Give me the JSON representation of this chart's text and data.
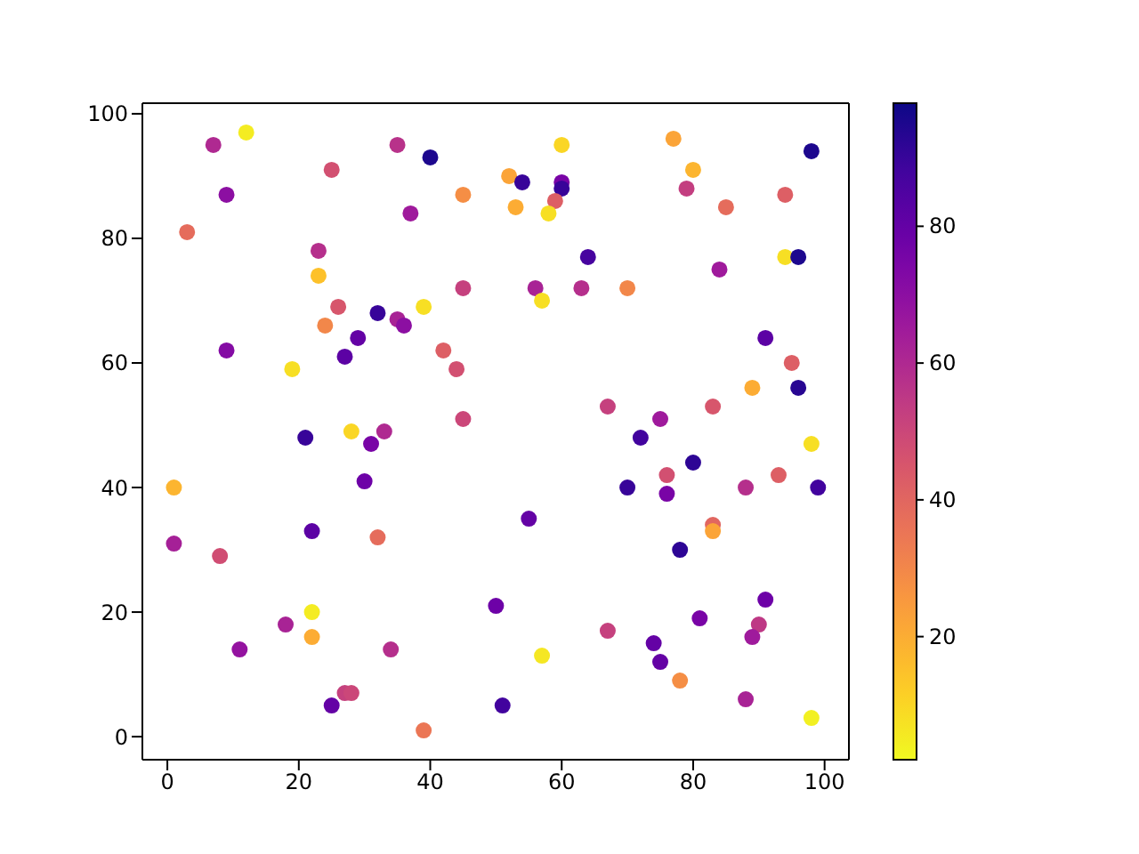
{
  "chart_data": {
    "type": "scatter",
    "x": [
      7,
      12,
      9,
      3,
      25,
      35,
      40,
      45,
      37,
      23,
      23,
      45,
      26,
      32,
      39,
      35,
      36,
      24,
      29,
      27,
      9,
      19,
      42,
      44,
      45,
      60,
      77,
      98,
      80,
      52,
      54,
      60,
      60,
      79,
      53,
      59,
      58,
      85,
      94,
      64,
      84,
      94,
      96,
      56,
      57,
      63,
      70,
      91,
      95,
      89,
      96,
      67,
      75,
      83,
      21,
      28,
      33,
      31,
      1,
      30,
      1,
      8,
      22,
      32,
      22,
      22,
      18,
      11,
      34,
      27,
      28,
      25,
      39,
      50,
      72,
      98,
      80,
      76,
      93,
      70,
      76,
      88,
      99,
      55,
      83,
      83,
      78,
      81,
      91,
      90,
      89,
      67,
      74,
      75,
      57,
      78,
      88,
      98,
      51
    ],
    "values": [
      95,
      97,
      87,
      81,
      91,
      95,
      93,
      87,
      84,
      78,
      74,
      72,
      69,
      68,
      69,
      67,
      66,
      66,
      64,
      61,
      62,
      59,
      62,
      59,
      51,
      95,
      96,
      94,
      91,
      90,
      89,
      89,
      88,
      88,
      85,
      86,
      84,
      85,
      87,
      77,
      75,
      77,
      77,
      72,
      70,
      72,
      72,
      64,
      60,
      56,
      56,
      53,
      51,
      53,
      48,
      49,
      49,
      47,
      40,
      41,
      31,
      29,
      33,
      32,
      20,
      16,
      18,
      14,
      14,
      7,
      7,
      5,
      1,
      21,
      48,
      47,
      44,
      42,
      42,
      40,
      39,
      40,
      40,
      35,
      34,
      33,
      30,
      19,
      22,
      18,
      16,
      17,
      15,
      12,
      13,
      9,
      6,
      3,
      5
    ],
    "cvalues": [
      60,
      5,
      70,
      38,
      47,
      57,
      95,
      28,
      65,
      58,
      15,
      52,
      45,
      90,
      8,
      62,
      70,
      30,
      80,
      82,
      72,
      8,
      42,
      47,
      50,
      10,
      22,
      95,
      18,
      22,
      90,
      75,
      90,
      53,
      20,
      42,
      8,
      38,
      42,
      87,
      65,
      8,
      95,
      62,
      8,
      58,
      30,
      82,
      42,
      20,
      93,
      52,
      65,
      45,
      90,
      10,
      60,
      75,
      18,
      78,
      63,
      48,
      82,
      38,
      5,
      20,
      62,
      68,
      58,
      52,
      50,
      80,
      35,
      78,
      88,
      8,
      92,
      47,
      42,
      90,
      75,
      58,
      88,
      80,
      40,
      22,
      92,
      75,
      78,
      55,
      65,
      52,
      80,
      80,
      6,
      28,
      62,
      4,
      88
    ],
    "xlim": [
      -3.8,
      103.7
    ],
    "xticks": [
      0,
      20,
      40,
      60,
      80,
      100
    ],
    "ylim": [
      -3.7,
      101.7
    ],
    "yticks": [
      0,
      20,
      40,
      60,
      80,
      100
    ],
    "clim": [
      2,
      98
    ],
    "cticks": [
      20,
      40,
      60,
      80
    ],
    "marker": "circle"
  }
}
